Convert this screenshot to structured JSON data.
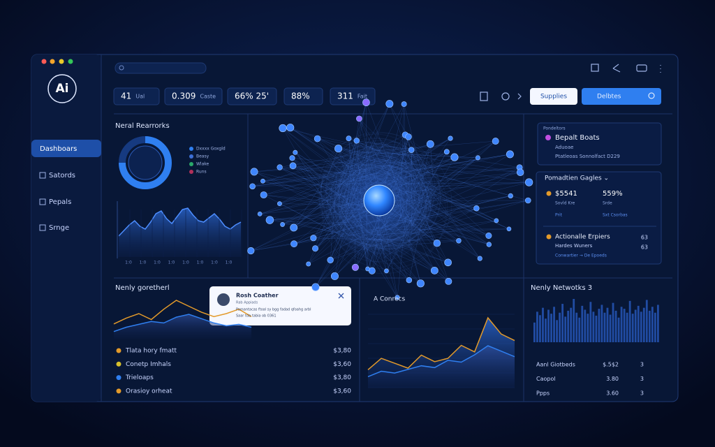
{
  "window": {
    "logo": "Ai",
    "nav": [
      "Dashboars",
      "Satords",
      "Pepals",
      "Srnge"
    ]
  },
  "stats": [
    {
      "value": "41",
      "unit": "Ual"
    },
    {
      "value": "0.309",
      "unit": "Caste"
    },
    {
      "value": "66% 25'"
    },
    {
      "value": "88%"
    },
    {
      "value": "311",
      "unit": "Fait"
    }
  ],
  "buttons": {
    "primary": "Supplies",
    "search": "Delbtes"
  },
  "neural": {
    "title": "Neral Rearrorks",
    "legend": [
      {
        "label": "Dxxxx Goxgld",
        "color": "#2f7ff0"
      },
      {
        "label": "Beasy",
        "color": "#3d6fd6"
      },
      {
        "label": "Wlake",
        "color": "#2aa86a"
      },
      {
        "label": "Runs",
        "color": "#b0305a"
      }
    ],
    "donut": [
      75,
      25
    ],
    "area": [
      30,
      38,
      46,
      52,
      44,
      40,
      50,
      62,
      66,
      55,
      48,
      58,
      68,
      70,
      60,
      52,
      50,
      56,
      62,
      54,
      44,
      40,
      46,
      50
    ],
    "xlabels": [
      "1:0",
      "1:0",
      "1:0",
      "1:0",
      "1:0",
      "1:0",
      "1:0",
      "1:0"
    ]
  },
  "profile": {
    "label": "Pondeltors",
    "title": "Bepalt Boats",
    "sub": "Aduoae",
    "note": "Ptatleoas Sonnolfact D229"
  },
  "metrics": {
    "title": "Pomadtien Gagles ⌄",
    "items": [
      {
        "value": "$5541",
        "label": "Sovld Kre",
        "link": "Prit"
      },
      {
        "value": "559%",
        "label": "Srde",
        "link": "Sxt Csorbas"
      }
    ],
    "action": {
      "title": "Actionalle Erpiers",
      "sub": "Hardes Wuners",
      "link": "Conwartier → De Epoeds",
      "n1": "63",
      "n2": "63"
    }
  },
  "recent": {
    "title": "Nenly goretherl",
    "popup": {
      "name": "Rosh Coather",
      "role": "Rab Appiads",
      "lines": [
        "Pamantacas ftoal sy bgg fadad qfoahg arbl",
        "Saar tda tabia ob 0361"
      ]
    },
    "series": [
      {
        "color": "#e39a2a",
        "values": [
          20,
          28,
          34,
          26,
          40,
          52,
          44,
          36,
          30,
          34,
          40,
          30
        ]
      },
      {
        "color": "#2f7ff0",
        "values": [
          10,
          16,
          20,
          24,
          22,
          30,
          34,
          28,
          22,
          18,
          20,
          16
        ]
      }
    ],
    "rows": [
      {
        "label": "Tlata hory fmatt",
        "value": "$3,80",
        "color": "#e39a2a"
      },
      {
        "label": "Conetp Imhals",
        "value": "$3,60",
        "color": "#d7c02c"
      },
      {
        "label": "Trieloaps",
        "value": "$3,80",
        "color": "#2f7ff0"
      },
      {
        "label": "Orasioy orheat",
        "value": "$3,60",
        "color": "#e39a2a"
      }
    ]
  },
  "connects": {
    "title": "A Conrecs",
    "series": [
      {
        "color": "#e39a2a",
        "values": [
          22,
          36,
          30,
          24,
          40,
          32,
          36,
          52,
          44,
          86,
          66,
          58
        ]
      },
      {
        "color": "#2f7ff0",
        "values": [
          12,
          18,
          16,
          20,
          24,
          22,
          30,
          28,
          36,
          46,
          40,
          34
        ]
      }
    ]
  },
  "networks": {
    "title": "Nenly Netwotks 3",
    "bars": [
      40,
      62,
      55,
      70,
      48,
      66,
      58,
      72,
      45,
      60,
      78,
      52,
      64,
      70,
      88,
      60,
      50,
      74,
      66,
      58,
      82,
      62,
      54,
      68,
      76,
      60,
      70,
      56,
      80,
      64,
      50,
      72,
      68,
      60,
      84,
      58,
      66,
      74,
      62,
      70,
      86,
      64,
      72,
      60,
      76
    ],
    "rows": [
      {
        "label": "Aanl Giotbeds",
        "value": "$.5$2",
        "n": "3"
      },
      {
        "label": "Caopol",
        "value": "3.80",
        "n": "3"
      },
      {
        "label": "Ppps",
        "value": "3.60",
        "n": "3"
      }
    ]
  }
}
